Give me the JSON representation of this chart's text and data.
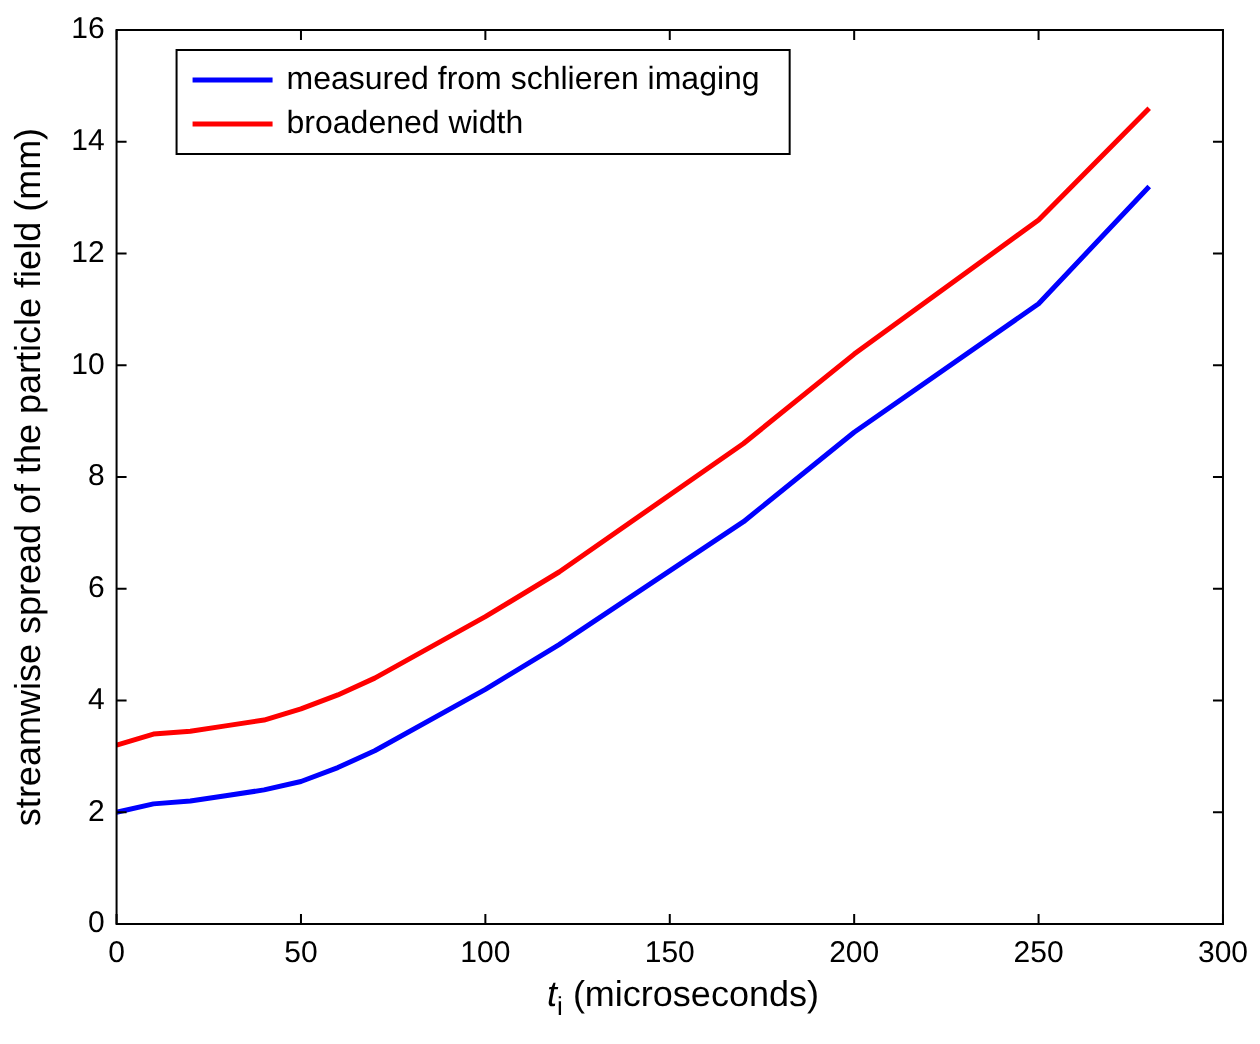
{
  "chart_data": {
    "type": "line",
    "xlabel": "t$_{i}$ (microseconds)",
    "ylabel": "streamwise spread of the particle field (mm)",
    "xlim": [
      0,
      300
    ],
    "xticks": [
      0,
      50,
      100,
      150,
      200,
      250,
      300
    ],
    "ylim": [
      0,
      16
    ],
    "yticks": [
      0,
      2,
      4,
      6,
      8,
      10,
      12,
      14,
      16
    ],
    "x": [
      0,
      10,
      20,
      30,
      40,
      50,
      60,
      70,
      100,
      120,
      170,
      200,
      250,
      280
    ],
    "series": [
      {
        "name": "measured from schlieren imaging",
        "color": "#0000ff",
        "values": [
          2.0,
          2.15,
          2.2,
          2.3,
          2.4,
          2.55,
          2.8,
          3.1,
          4.2,
          5.0,
          7.2,
          8.8,
          11.1,
          13.2
        ]
      },
      {
        "name": "broadened width",
        "color": "#ff0000",
        "values": [
          3.2,
          3.4,
          3.45,
          3.55,
          3.65,
          3.85,
          4.1,
          4.4,
          5.5,
          6.3,
          8.6,
          10.2,
          12.6,
          14.6
        ]
      }
    ],
    "grid": false,
    "legend": "top left",
    "marker": "none",
    "line_style": "solid"
  }
}
